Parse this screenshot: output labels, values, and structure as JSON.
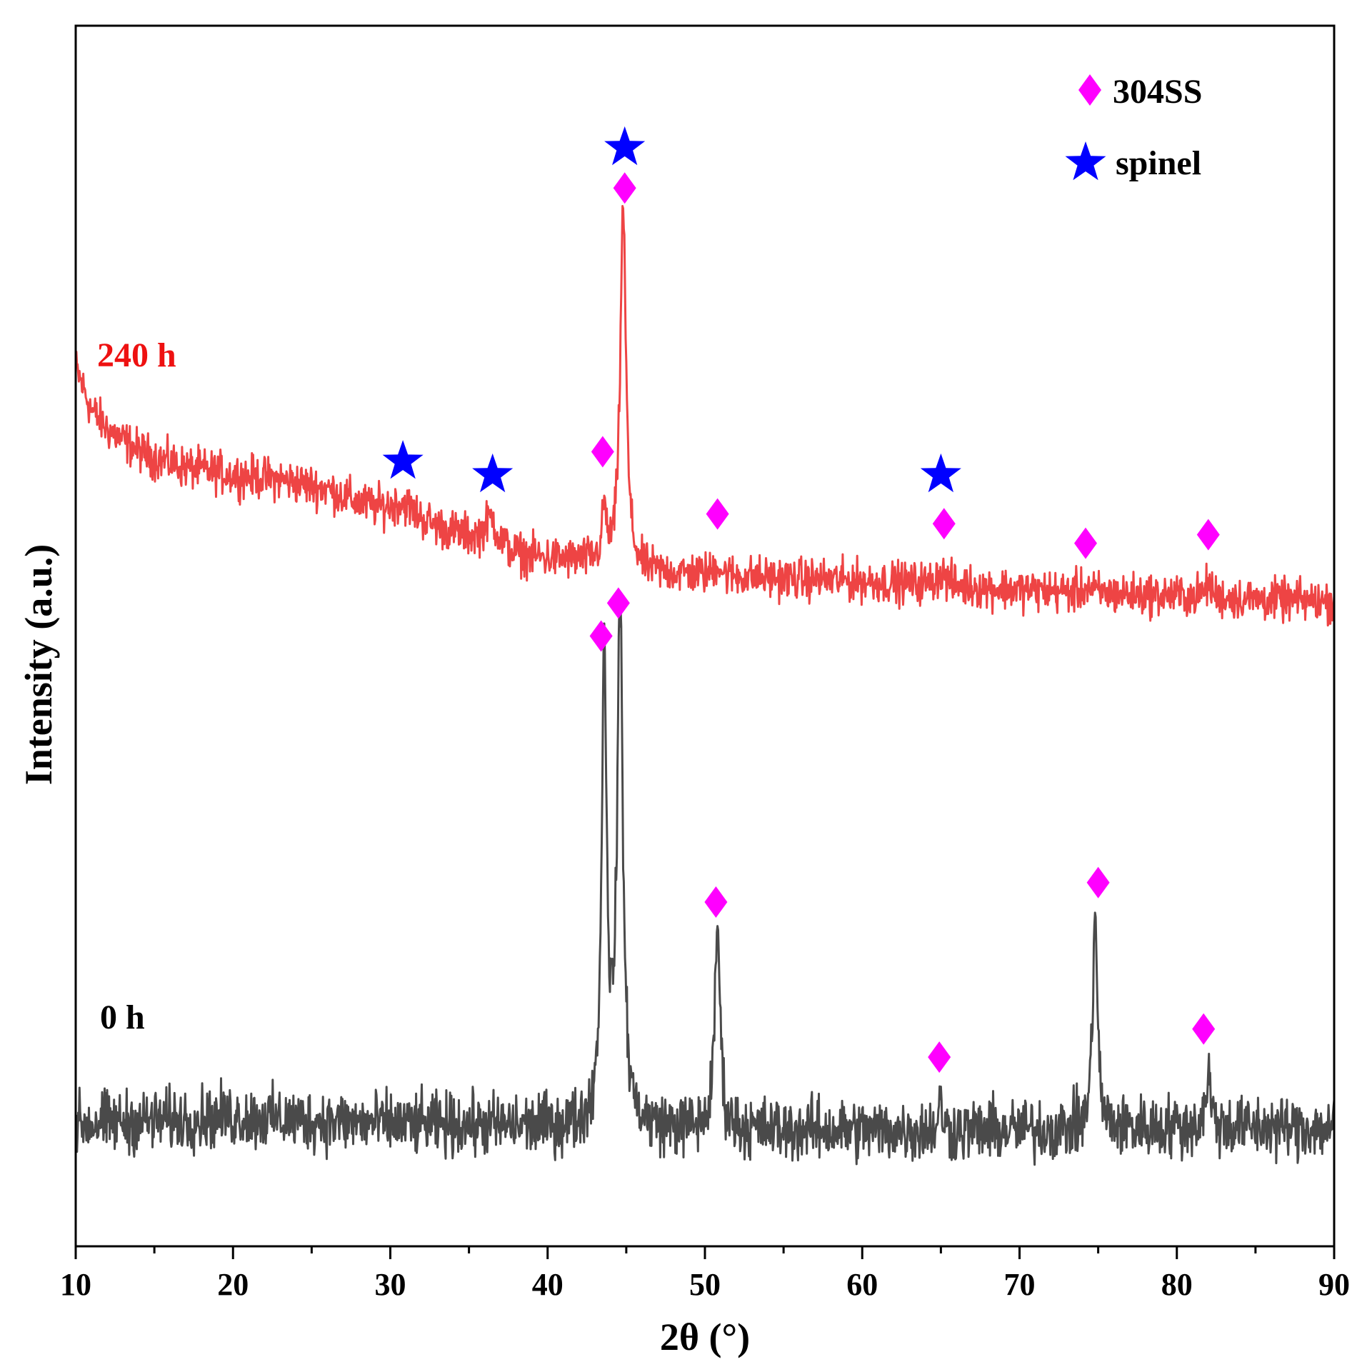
{
  "chart_data": {
    "type": "line",
    "title": "",
    "xlabel": "2θ (°)",
    "ylabel": "Intensity (a.u.)",
    "xlim": [
      10,
      90
    ],
    "ylim": [
      0,
      100
    ],
    "xticks": [
      10,
      20,
      30,
      40,
      50,
      60,
      70,
      80,
      90
    ],
    "xticks_minor": [
      15,
      25,
      35,
      45,
      55,
      65,
      75,
      85
    ],
    "grid": false,
    "legend_position": "top-right",
    "legend": [
      {
        "label": "304SS",
        "marker": "diamond",
        "color": "#ff00ff"
      },
      {
        "label": "spinel",
        "marker": "star",
        "color": "#0000ff"
      }
    ],
    "series": [
      {
        "name": "240 h",
        "color": "#ee4444",
        "label_color": "#ee1111",
        "noise": 1.2,
        "baseline_points": [
          [
            10,
            72
          ],
          [
            11,
            68.5
          ],
          [
            12,
            67
          ],
          [
            13,
            66
          ],
          [
            14,
            65.2
          ],
          [
            15,
            64.6
          ],
          [
            17,
            63.8
          ],
          [
            20,
            63.2
          ],
          [
            23,
            62.8
          ],
          [
            26,
            62
          ],
          [
            28,
            60.8
          ],
          [
            30,
            60
          ],
          [
            33,
            58.8
          ],
          [
            35,
            58
          ],
          [
            38,
            56.6
          ],
          [
            40,
            56.3
          ],
          [
            43,
            56
          ],
          [
            46,
            55.2
          ],
          [
            50,
            55
          ],
          [
            55,
            54.7
          ],
          [
            60,
            54.5
          ],
          [
            65,
            54.2
          ],
          [
            70,
            53.8
          ],
          [
            75,
            53.5
          ],
          [
            80,
            53.3
          ],
          [
            85,
            53
          ],
          [
            90,
            52.8
          ]
        ],
        "peaks": [
          {
            "x": 30.8,
            "height": 1.2,
            "width": 1.2
          },
          {
            "x": 36.4,
            "height": 2.3,
            "width": 0.6
          },
          {
            "x": 43.6,
            "height": 4.5,
            "width": 0.18
          },
          {
            "x": 44.8,
            "height": 29.5,
            "width": 0.28
          },
          {
            "x": 50.8,
            "height": 1.0,
            "width": 0.3
          },
          {
            "x": 65.0,
            "height": 1.0,
            "width": 0.4
          },
          {
            "x": 74.3,
            "height": 0.5,
            "width": 0.3
          },
          {
            "x": 82.0,
            "height": 1.1,
            "width": 0.3
          }
        ],
        "markers": [
          {
            "type": "star",
            "x": 30.8,
            "y": 64.3
          },
          {
            "type": "star",
            "x": 36.5,
            "y": 63.2
          },
          {
            "type": "diamond",
            "x": 43.5,
            "y": 65.1
          },
          {
            "type": "star",
            "x": 44.9,
            "y": 90.0
          },
          {
            "type": "diamond",
            "x": 44.9,
            "y": 86.7
          },
          {
            "type": "diamond",
            "x": 50.8,
            "y": 60.0
          },
          {
            "type": "star",
            "x": 65.0,
            "y": 63.2
          },
          {
            "type": "diamond",
            "x": 65.2,
            "y": 59.2
          },
          {
            "type": "diamond",
            "x": 74.2,
            "y": 57.6
          },
          {
            "type": "diamond",
            "x": 82.0,
            "y": 58.3
          }
        ]
      },
      {
        "name": "0 h",
        "color": "#4a4a4a",
        "label_color": "#000000",
        "noise": 1.8,
        "baseline_points": [
          [
            10,
            10
          ],
          [
            20,
            10.6
          ],
          [
            30,
            10
          ],
          [
            40,
            9.8
          ],
          [
            50,
            9.6
          ],
          [
            60,
            9.5
          ],
          [
            70,
            9.5
          ],
          [
            80,
            9.8
          ],
          [
            90,
            9.7
          ]
        ],
        "peaks": [
          {
            "x": 43.6,
            "height": 38,
            "width": 0.25
          },
          {
            "x": 44.6,
            "height": 41.5,
            "width": 0.28
          },
          {
            "x": 50.8,
            "height": 17,
            "width": 0.25
          },
          {
            "x": 65.0,
            "height": 2.5,
            "width": 0.15
          },
          {
            "x": 74.8,
            "height": 18.3,
            "width": 0.22
          },
          {
            "x": 82.0,
            "height": 4.5,
            "width": 0.22
          }
        ],
        "markers": [
          {
            "type": "diamond",
            "x": 43.4,
            "y": 50.0
          },
          {
            "type": "diamond",
            "x": 44.5,
            "y": 52.7
          },
          {
            "type": "diamond",
            "x": 50.7,
            "y": 28.2
          },
          {
            "type": "diamond",
            "x": 64.9,
            "y": 15.5
          },
          {
            "type": "diamond",
            "x": 75.0,
            "y": 29.8
          },
          {
            "type": "diamond",
            "x": 81.7,
            "y": 17.8
          }
        ]
      }
    ]
  }
}
